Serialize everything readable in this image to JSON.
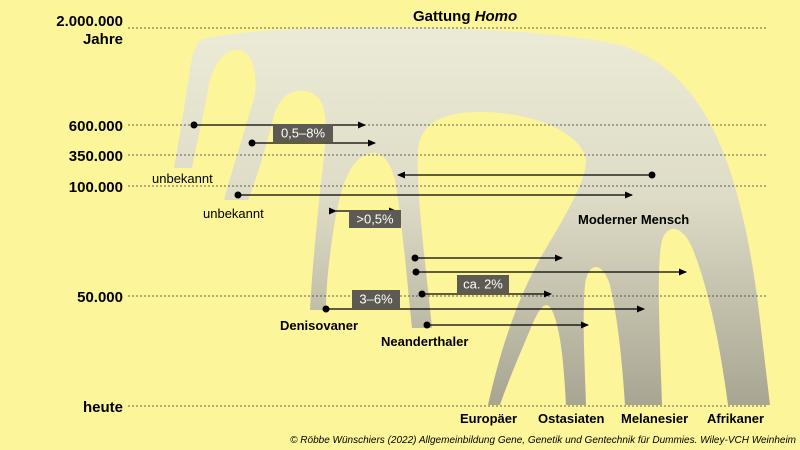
{
  "title": {
    "prefix": "Gattung ",
    "italic": "Homo"
  },
  "axis": {
    "mya_value": "2.000.000",
    "mya_unit": "Jahre",
    "t600k": "600.000",
    "t350k": "350.000",
    "t100k": "100.000",
    "t50k": "50.000",
    "today": "heute"
  },
  "lineages": {
    "unknown_1": "unbekannt",
    "unknown_2": "unbekannt",
    "denisovan": "Denisovaner",
    "neanderthal": "Neanderthaler",
    "modern_human": "Moderner Mensch"
  },
  "admixture": {
    "pct_a": "0,5–8%",
    "pct_b": ">0,5%",
    "pct_c": "ca. 2%",
    "pct_d": "3–6%"
  },
  "populations": {
    "europeans": "Europäer",
    "east_asians": "Ostasiaten",
    "melanesians": "Melanesier",
    "africans": "Afrikaner"
  },
  "credit": "© Röbbe Wünschiers (2022) Allgemeinbildung Gene, Genetik und Gentechnik für Dummies. Wiley-VCH Weinheim",
  "colors": {
    "background": "#fdf59a",
    "tree_top": "#ecebd7",
    "tree_bottom": "#a8a592",
    "label_box": "#5c5a53",
    "arrow": "#000000"
  }
}
